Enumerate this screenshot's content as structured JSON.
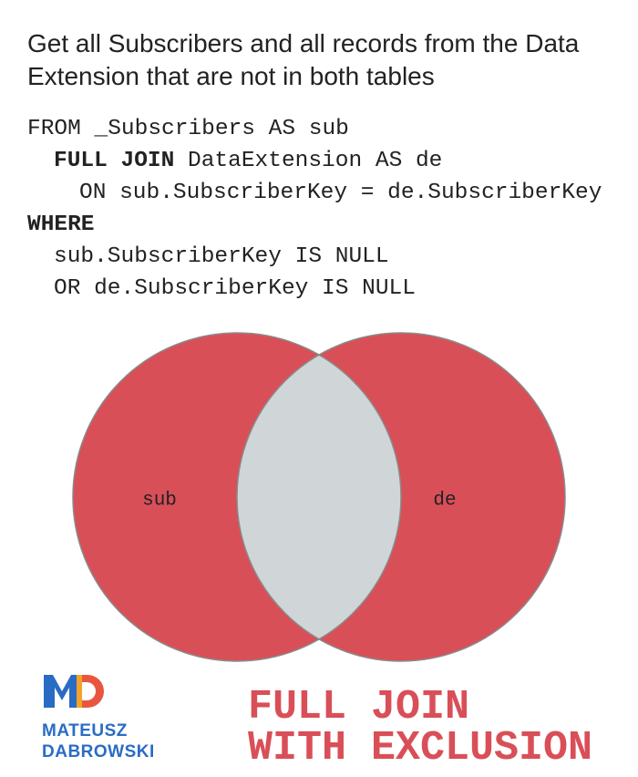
{
  "title": "Get all Subscribers and all records from the Data Extension that are not in both tables",
  "code": [
    [
      {
        "text": "FROM _Subscribers AS sub"
      }
    ],
    [
      {
        "keyword": "FULL JOIN"
      },
      {
        "text": " DataExtension AS de"
      }
    ],
    [
      {
        "text": "ON sub.SubscriberKey = de.SubscriberKey"
      }
    ],
    [
      {
        "keyword": "WHERE"
      }
    ],
    [
      {
        "text": "sub.SubscriberKey IS NULL"
      }
    ],
    [
      {
        "text": "OR de.SubscriberKey IS NULL"
      }
    ]
  ],
  "venn": {
    "left_label": "sub",
    "right_label": "de"
  },
  "logo": {
    "line1": "MATEUSZ",
    "line2": "DABROWSKI"
  },
  "caption": {
    "line1": "FULL JOIN",
    "line2": "WITH EXCLUSION"
  }
}
